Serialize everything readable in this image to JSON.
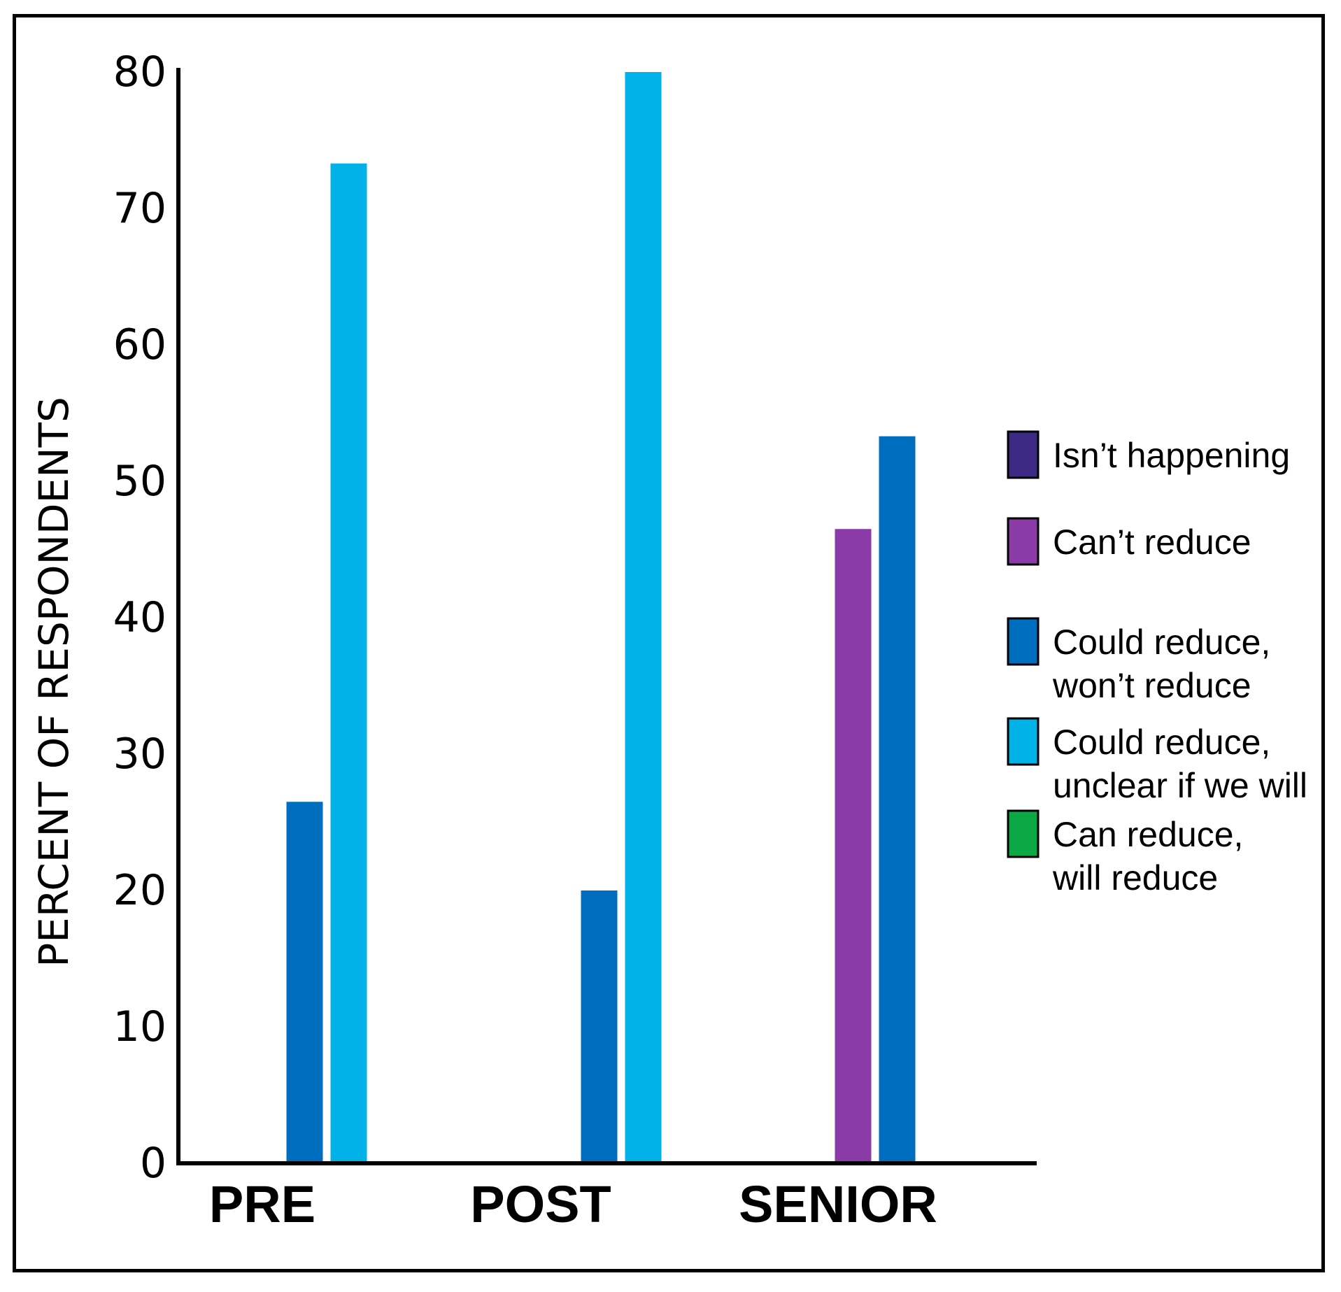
{
  "chart_data": {
    "type": "bar",
    "title": "",
    "xlabel": "",
    "ylabel": "PERCENT OF RESPONDENTS",
    "categories": [
      "PRE",
      "POST",
      "SENIOR"
    ],
    "ylim": [
      0,
      80
    ],
    "yticks": [
      0,
      10,
      20,
      30,
      40,
      50,
      60,
      70,
      80
    ],
    "grid": false,
    "legend_position": "right",
    "series": [
      {
        "name": "Isn’t happening",
        "lines": [
          "Isn’t happening"
        ],
        "color": "#3d2a85",
        "values": [
          0,
          0,
          0
        ]
      },
      {
        "name": "Can’t reduce",
        "lines": [
          "Can’t reduce"
        ],
        "color": "#8a3ba8",
        "values": [
          0,
          0,
          46.5
        ]
      },
      {
        "name": "Could reduce, won’t reduce",
        "lines": [
          "Could reduce,",
          "won’t reduce"
        ],
        "color": "#006ebf",
        "values": [
          26.5,
          20,
          53.3
        ]
      },
      {
        "name": "Could reduce, unclear if we will",
        "lines": [
          "Could reduce,",
          "unclear if we will"
        ],
        "color": "#00b2e8",
        "values": [
          73.3,
          80,
          0
        ]
      },
      {
        "name": "Can reduce, will reduce",
        "lines": [
          "Can reduce,",
          "will reduce"
        ],
        "color": "#0ba845",
        "values": [
          0,
          0,
          0
        ]
      }
    ]
  }
}
